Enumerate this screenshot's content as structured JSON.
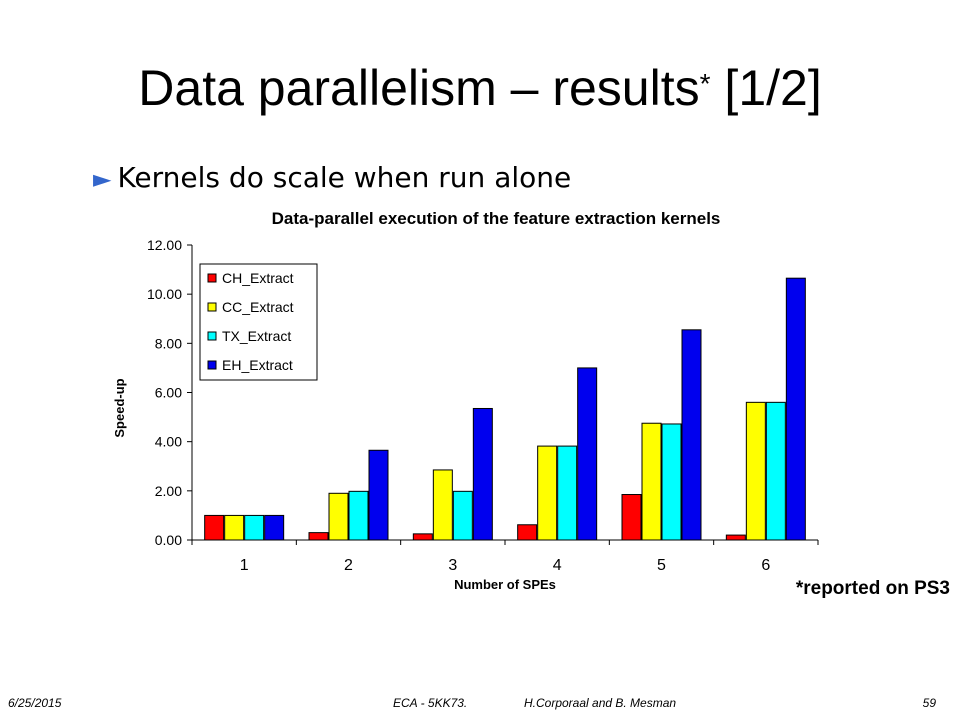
{
  "slide": {
    "title_main": "Data parallelism – results",
    "title_star": "*",
    "title_suffix": "[1/2]",
    "bullet_marker": "►",
    "bullet": "Kernels do scale when run alone",
    "footnote": "*reported on PS3"
  },
  "footer": {
    "date": "6/25/2015",
    "course": "ECA - 5KK73.",
    "authors": "H.Corporaal and B. Mesman",
    "page": "59"
  },
  "chart_data": {
    "type": "bar",
    "title": "Data-parallel execution of the feature extraction kernels",
    "xlabel": "Number of SPEs",
    "ylabel": "Speed-up",
    "categories": [
      "1",
      "2",
      "3",
      "4",
      "5",
      "6"
    ],
    "ylim": [
      0,
      12
    ],
    "yticks": [
      "0.00",
      "2.00",
      "4.00",
      "6.00",
      "8.00",
      "10.00",
      "12.00"
    ],
    "grid": false,
    "legend_position": "top-left",
    "series": [
      {
        "name": "CH_Extract",
        "color": "#ff0000",
        "values": [
          1.0,
          0.3,
          0.25,
          0.62,
          1.85,
          0.2
        ]
      },
      {
        "name": "CC_Extract",
        "color": "#ffff00",
        "values": [
          1.0,
          1.9,
          2.85,
          3.82,
          4.75,
          5.6
        ]
      },
      {
        "name": "TX_Extract",
        "color": "#00ffff",
        "values": [
          1.0,
          1.98,
          1.98,
          3.82,
          4.72,
          5.6
        ]
      },
      {
        "name": "EH_Extract",
        "color": "#0000ee",
        "values": [
          1.0,
          3.65,
          5.35,
          7.0,
          8.55,
          10.65
        ]
      }
    ]
  }
}
